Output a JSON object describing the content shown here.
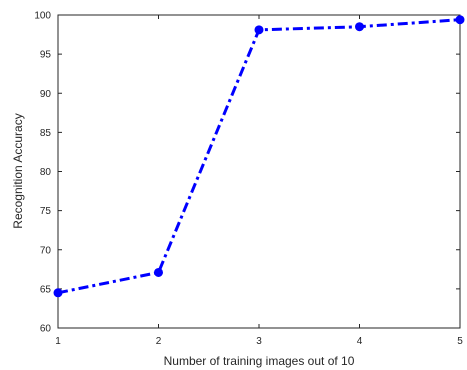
{
  "chart_data": {
    "type": "line",
    "xlabel": "Number of training images out of 10",
    "ylabel": "Recognition Accuracy",
    "xlim": [
      1,
      5
    ],
    "ylim": [
      60,
      100
    ],
    "xticks": [
      1,
      2,
      3,
      4,
      5
    ],
    "yticks": [
      60,
      65,
      70,
      75,
      80,
      85,
      90,
      95,
      100
    ],
    "grid": false,
    "line_style": "dash-dot",
    "marker": "circle",
    "color": "#0000FF",
    "series": [
      {
        "x": [
          1,
          2,
          3,
          4,
          5
        ],
        "y": [
          64.5,
          67.1,
          98.1,
          98.5,
          99.4
        ]
      }
    ]
  }
}
